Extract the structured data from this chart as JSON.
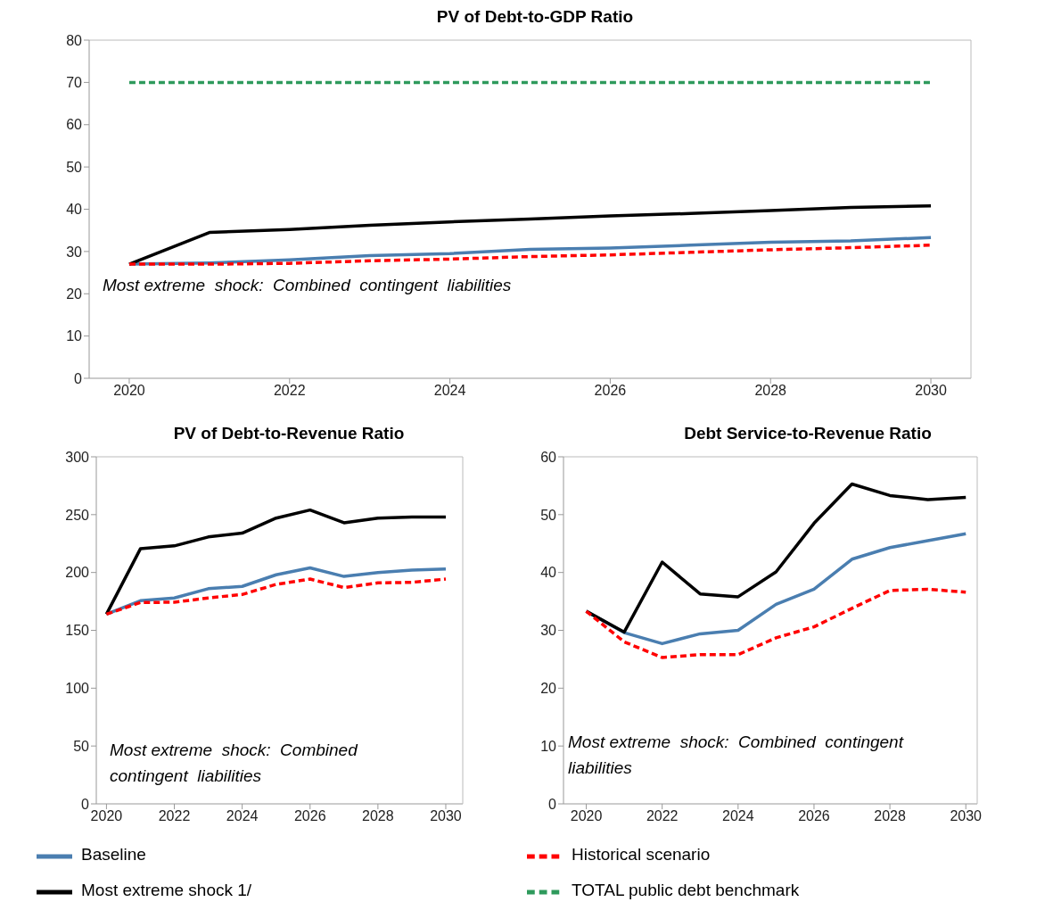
{
  "chart_data": [
    {
      "type": "line",
      "title": "PV of Debt-to-GDP  Ratio",
      "x": [
        2020,
        2021,
        2022,
        2023,
        2024,
        2025,
        2026,
        2027,
        2028,
        2029,
        2030
      ],
      "xlim": [
        2019.5,
        2030.5
      ],
      "xticks": [
        2020,
        2022,
        2024,
        2026,
        2028,
        2030
      ],
      "ylim": [
        0,
        80
      ],
      "yticks": [
        0,
        10,
        20,
        30,
        40,
        50,
        60,
        70,
        80
      ],
      "legend": "bottom",
      "annotations": [
        "Most extreme  shock:  Combined  contingent  liabilities"
      ],
      "series": [
        {
          "name": "Baseline",
          "color": "#4a7eb0",
          "line_style": "solid",
          "values": [
            27,
            27.3,
            28,
            29,
            29.5,
            30.5,
            30.8,
            31.5,
            32.2,
            32.5,
            33.3
          ]
        },
        {
          "name": "Most extreme shock 1/",
          "color": "#000000",
          "line_style": "solid",
          "values": [
            27,
            34.5,
            35.2,
            36.2,
            37,
            37.7,
            38.4,
            39,
            39.7,
            40.4,
            40.8
          ]
        },
        {
          "name": "TOTAL public debt benchmark",
          "color": "#2e9a5c",
          "line_style": "dashed",
          "values": [
            70,
            70,
            70,
            70,
            70,
            70,
            70,
            70,
            70,
            70,
            70
          ]
        },
        {
          "name": "Historical scenario",
          "color": "#ff0000",
          "line_style": "dashed",
          "values": [
            27,
            27,
            27.2,
            27.8,
            28.2,
            28.8,
            29.2,
            29.8,
            30.4,
            30.9,
            31.5
          ]
        }
      ]
    },
    {
      "type": "line",
      "title": "PV of Debt-to-Revenue  Ratio",
      "x": [
        2020,
        2021,
        2022,
        2023,
        2024,
        2025,
        2026,
        2027,
        2028,
        2029,
        2030
      ],
      "xlim": [
        2019.7,
        2030.5
      ],
      "xticks": [
        2020,
        2022,
        2024,
        2026,
        2028,
        2030
      ],
      "ylim": [
        0,
        300
      ],
      "yticks": [
        0,
        50,
        100,
        150,
        200,
        250,
        300
      ],
      "annotations": [
        "Most extreme  shock:  Combined contingent  liabilities"
      ],
      "series": [
        {
          "color": "#4a7eb0",
          "line_style": "solid",
          "values": [
            164,
            175.6,
            178,
            186,
            188,
            198,
            204,
            196.6,
            200,
            202,
            203
          ]
        },
        {
          "color": "#000000",
          "line_style": "solid",
          "values": [
            164,
            220.5,
            223,
            230.7,
            234,
            247,
            254,
            243,
            247,
            248,
            248
          ]
        },
        {
          "color": "#ff0000",
          "line_style": "dashed",
          "values": [
            164,
            174,
            174.3,
            178,
            181,
            189.7,
            194.3,
            187,
            191,
            191.5,
            194.3
          ]
        }
      ]
    },
    {
      "type": "line",
      "title": "Debt Service-to-Revenue  Ratio",
      "x": [
        2020,
        2021,
        2022,
        2023,
        2024,
        2025,
        2026,
        2027,
        2028,
        2029,
        2030
      ],
      "xlim": [
        2019.4,
        2030.3
      ],
      "xticks": [
        2020,
        2022,
        2024,
        2026,
        2028,
        2030
      ],
      "ylim": [
        0,
        60
      ],
      "yticks": [
        0,
        10,
        20,
        30,
        40,
        50,
        60
      ],
      "annotations": [
        "Most extreme  shock:  Combined  contingent liabilities"
      ],
      "series": [
        {
          "color": "#4a7eb0",
          "line_style": "solid",
          "values": [
            33.3,
            29.6,
            27.7,
            29.4,
            30,
            34.5,
            37.1,
            42.3,
            44.3,
            45.5,
            46.7
          ]
        },
        {
          "color": "#000000",
          "line_style": "solid",
          "values": [
            33.3,
            29.7,
            41.8,
            36.3,
            35.8,
            40.1,
            48.5,
            55.3,
            53.3,
            52.6,
            53
          ]
        },
        {
          "color": "#ff0000",
          "line_style": "dashed",
          "values": [
            33.3,
            28,
            25.3,
            25.8,
            25.8,
            28.7,
            30.6,
            33.8,
            36.9,
            37.1,
            36.6
          ]
        }
      ]
    }
  ]
}
